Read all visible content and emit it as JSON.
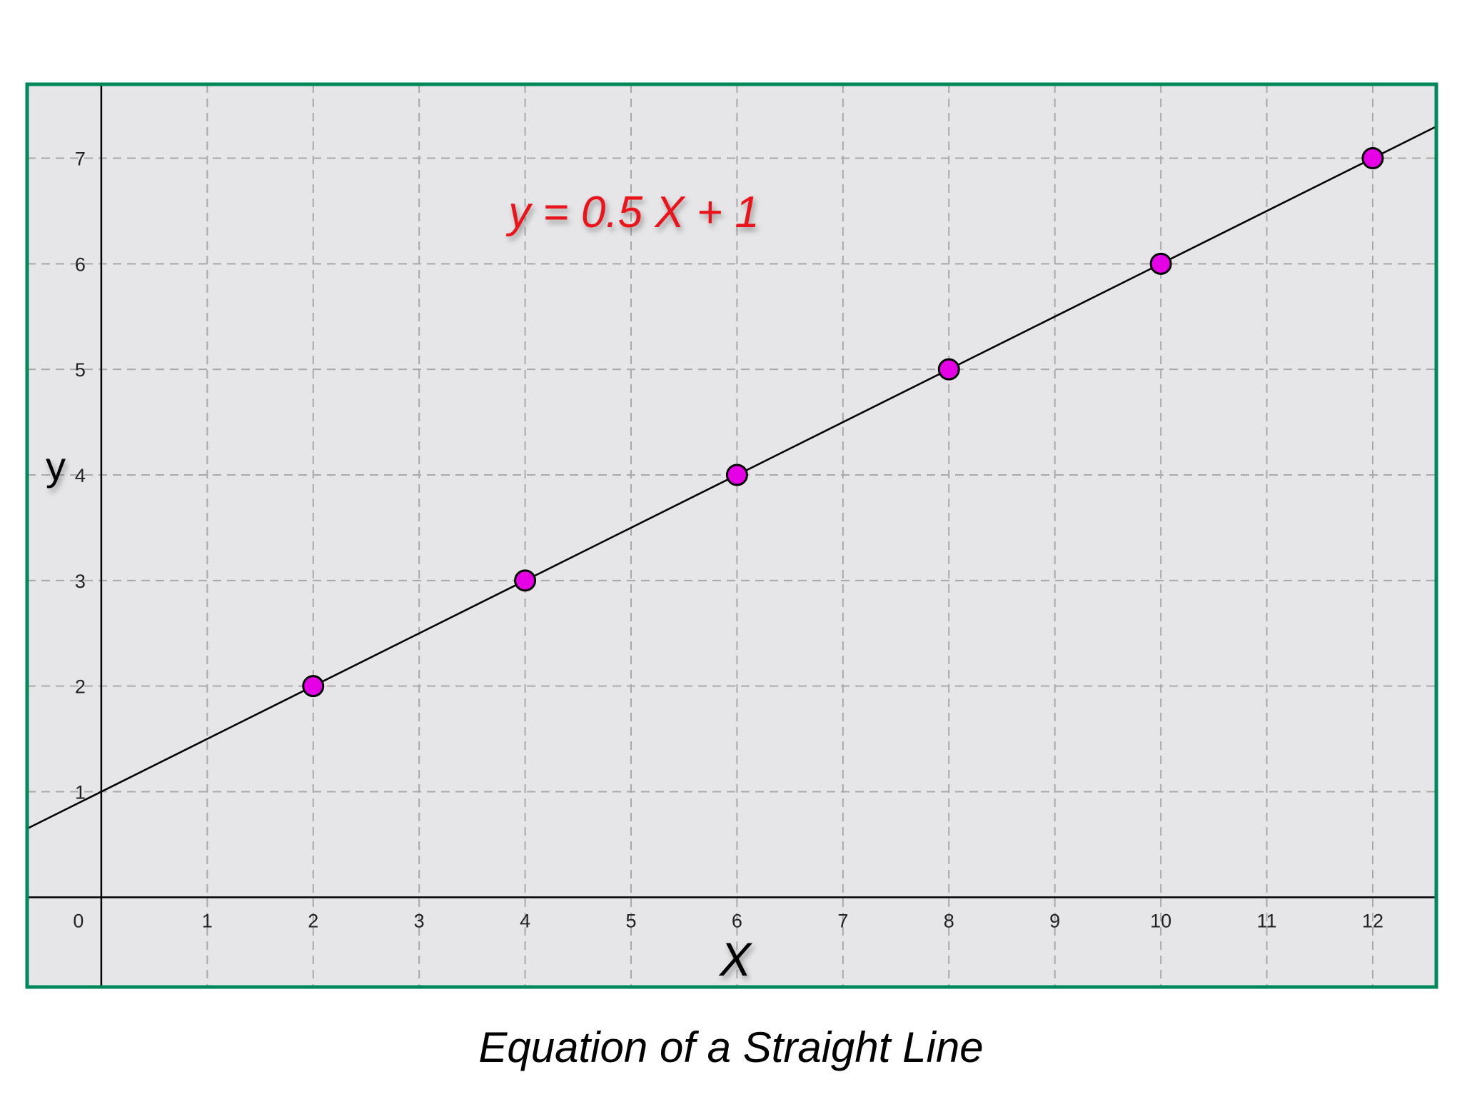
{
  "caption": "Equation of a Straight Line",
  "equation": "y = 0.5 X + 1",
  "chart_data": {
    "type": "scatter",
    "title": "",
    "xlabel": "X",
    "ylabel": "y",
    "xlim": [
      -0.7,
      12.6
    ],
    "ylim": [
      -0.85,
      7.7
    ],
    "x_ticks": [
      0,
      1,
      2,
      3,
      4,
      5,
      6,
      7,
      8,
      9,
      10,
      11,
      12
    ],
    "y_ticks": [
      1,
      2,
      3,
      4,
      5,
      6,
      7
    ],
    "grid": true,
    "line": {
      "slope": 0.5,
      "intercept": 1,
      "x_range": [
        -0.7,
        12.6
      ]
    },
    "points": [
      {
        "x": 2,
        "y": 2
      },
      {
        "x": 4,
        "y": 3
      },
      {
        "x": 6,
        "y": 4
      },
      {
        "x": 8,
        "y": 5
      },
      {
        "x": 10,
        "y": 6
      },
      {
        "x": 12,
        "y": 7
      }
    ],
    "colors": {
      "frame": "#00875a",
      "plot_bg": "#e6e6e8",
      "grid": "#a9a9a9",
      "point_fill": "#e600e6",
      "equation": "#e8191b",
      "line": "#000000"
    }
  }
}
